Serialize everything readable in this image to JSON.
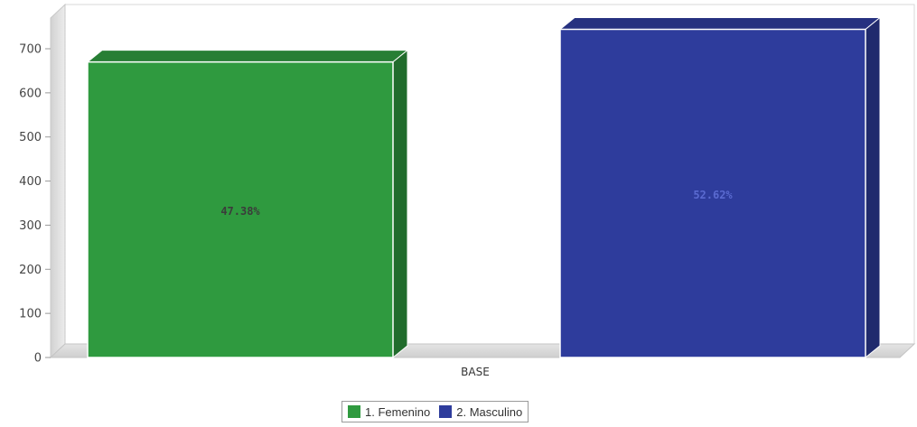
{
  "chart_data": {
    "type": "bar",
    "categories": [
      "BASE"
    ],
    "series": [
      {
        "name": "1. Femenino",
        "values": [
          670
        ],
        "label": "47.38%",
        "color": "#2f9a3f"
      },
      {
        "name": "2. Masculino",
        "values": [
          744
        ],
        "label": "52.62%",
        "color": "#2e3c9c"
      }
    ],
    "xlabel": "",
    "ylabel": "",
    "ylim": [
      0,
      700
    ],
    "yticks": [
      0,
      100,
      200,
      300,
      400,
      500,
      600,
      700
    ],
    "grid": false,
    "legend_position": "bottom",
    "style": "3d"
  }
}
